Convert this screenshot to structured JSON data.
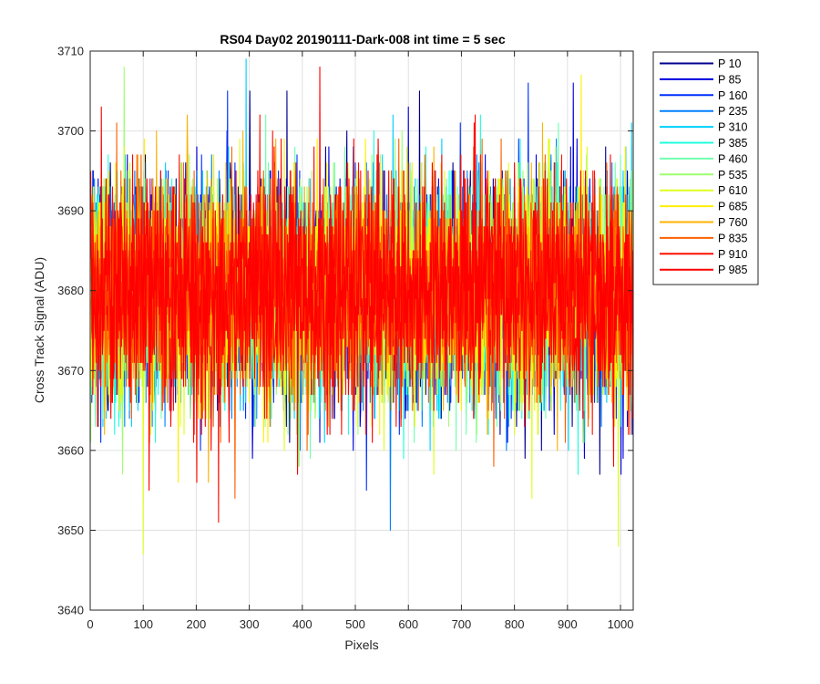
{
  "chart_data": {
    "type": "line",
    "title": "RS04 Day02 20190111-Dark-008 int time = 5 sec",
    "xlabel": "Pixels",
    "ylabel": "Cross Track Signal (ADU)",
    "xlim": [
      0,
      1024
    ],
    "ylim": [
      3640,
      3710
    ],
    "xticks": [
      0,
      100,
      200,
      300,
      400,
      500,
      600,
      700,
      800,
      900,
      1000
    ],
    "yticks": [
      3640,
      3650,
      3660,
      3670,
      3680,
      3690,
      3700,
      3710
    ],
    "grid": true,
    "legend_location": "outside-top-right",
    "n_points": 1024,
    "mean_signal": 3680,
    "noise_std": 7,
    "series": [
      {
        "name": "P 10",
        "color": "#00008F",
        "extremes": [
          [
            300,
            3705
          ],
          [
            370,
            3705
          ],
          [
            620,
            3705
          ],
          [
            960,
            3657
          ]
        ]
      },
      {
        "name": "P 85",
        "color": "#0000DF",
        "extremes": [
          [
            305,
            3659
          ],
          [
            910,
            3706
          ],
          [
            1000,
            3657
          ]
        ]
      },
      {
        "name": "P 160",
        "color": "#0030FF",
        "extremes": [
          [
            258,
            3705
          ],
          [
            520,
            3655
          ],
          [
            825,
            3706
          ]
        ]
      },
      {
        "name": "P 235",
        "color": "#0080FF",
        "extremes": [
          [
            565,
            3650
          ],
          [
            395,
            3660
          ]
        ]
      },
      {
        "name": "P 310",
        "color": "#00D0FF",
        "extremes": [
          [
            293,
            3709
          ],
          [
            640,
            3660
          ]
        ]
      },
      {
        "name": "P 385",
        "color": "#20FFDF",
        "extremes": [
          [
            45,
            3662
          ],
          [
            735,
            3702
          ]
        ]
      },
      {
        "name": "P 460",
        "color": "#70FFAF",
        "extremes": [
          [
            330,
            3702
          ],
          [
            610,
            3661
          ]
        ]
      },
      {
        "name": "P 535",
        "color": "#9FFF70",
        "extremes": [
          [
            63,
            3708
          ],
          [
            60,
            3657
          ]
        ]
      },
      {
        "name": "P 610",
        "color": "#DFFF20",
        "extremes": [
          [
            99,
            3647
          ],
          [
            995,
            3648
          ]
        ]
      },
      {
        "name": "P 685",
        "color": "#FFEF00",
        "extremes": [
          [
            165,
            3656
          ],
          [
            925,
            3707
          ]
        ]
      },
      {
        "name": "P 760",
        "color": "#FFB000",
        "extremes": [
          [
            222,
            3656
          ],
          [
            880,
            3660
          ]
        ]
      },
      {
        "name": "P 835",
        "color": "#FF6000",
        "extremes": [
          [
            272,
            3654
          ],
          [
            760,
            3658
          ]
        ]
      },
      {
        "name": "P 910",
        "color": "#FF1000",
        "extremes": [
          [
            241,
            3651
          ],
          [
            200,
            3656
          ]
        ]
      },
      {
        "name": "P 985",
        "color": "#FF0000",
        "extremes": [
          [
            432,
            3708
          ],
          [
            110,
            3655
          ],
          [
            390,
            3657
          ]
        ]
      }
    ]
  }
}
